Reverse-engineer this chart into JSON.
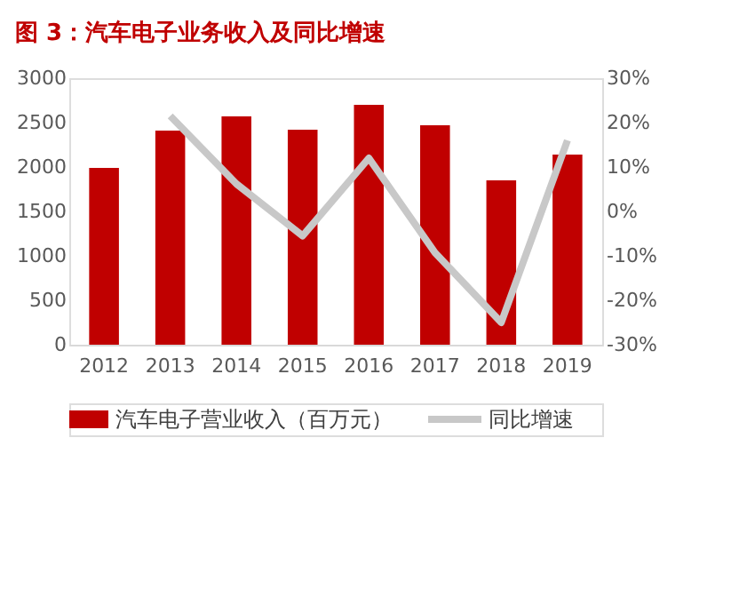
{
  "chart_data": {
    "type": "bar",
    "title": "图 3：汽车电子业务收入及同比增速",
    "categories": [
      "2012",
      "2013",
      "2014",
      "2015",
      "2016",
      "2017",
      "2018",
      "2019"
    ],
    "series": [
      {
        "name": "汽车电子营业收入（百万元）",
        "color": "#c00000",
        "values": [
          1990,
          2410,
          2570,
          2420,
          2700,
          2470,
          1850,
          2140
        ]
      },
      {
        "name": "同比增速",
        "type": "line",
        "axis": "y2",
        "color": "#c8c8c8",
        "values": [
          null,
          21.5,
          6.2,
          -5.5,
          12,
          -9.3,
          -25,
          16
        ]
      }
    ],
    "ylim": [
      0,
      3000
    ],
    "yticks": [
      0,
      500,
      1000,
      1500,
      2000,
      2500,
      3000
    ],
    "y2lim": [
      -30,
      30
    ],
    "y2ticks": [
      {
        "value": -30,
        "label": "-30%"
      },
      {
        "value": -20,
        "label": "-20%"
      },
      {
        "value": -10,
        "label": "-10%"
      },
      {
        "value": 0,
        "label": "0%"
      },
      {
        "value": 10,
        "label": "10%"
      },
      {
        "value": 20,
        "label": "20%"
      },
      {
        "value": 30,
        "label": "30%"
      }
    ],
    "grid": false,
    "legend": "bottom",
    "marker": "none",
    "line_style": "solid"
  }
}
